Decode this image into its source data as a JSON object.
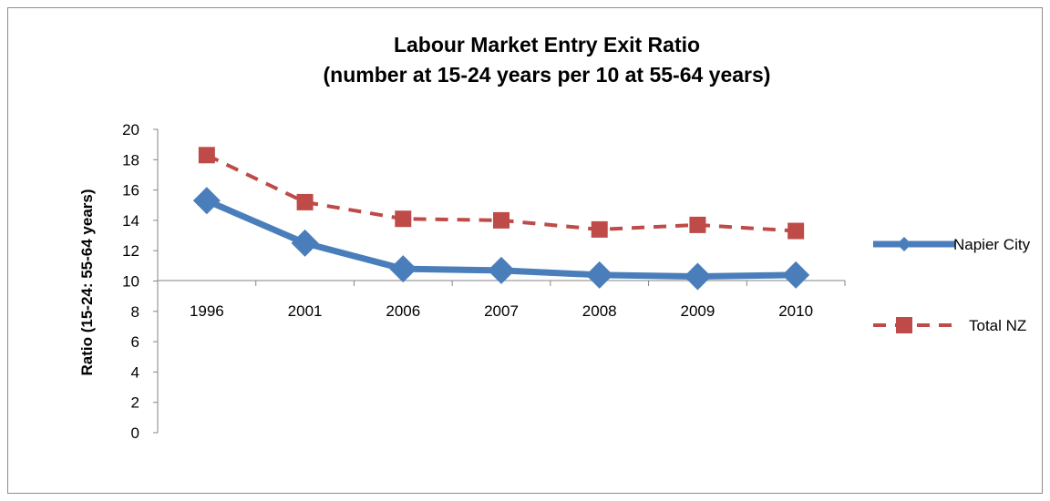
{
  "chart_data": {
    "type": "line",
    "title": "Labour Market Entry Exit Ratio",
    "subtitle": "(number at 15-24 years per 10 at 55-64 years)",
    "ylabel": "Ratio  (15-24: 55-64 years)",
    "xlabel": "",
    "categories": [
      "1996",
      "2001",
      "2006",
      "2007",
      "2008",
      "2009",
      "2010"
    ],
    "ylim": [
      0,
      20
    ],
    "yticks": [
      "0",
      "2",
      "4",
      "6",
      "8",
      "10",
      "12",
      "14",
      "16",
      "18",
      "20"
    ],
    "grid": false,
    "legend_position": "right",
    "series": [
      {
        "name": "Napier City",
        "values": [
          15.3,
          12.5,
          10.8,
          10.7,
          10.4,
          10.3,
          10.4
        ],
        "color": "#4a7ebb",
        "marker": "diamond",
        "style": "solid"
      },
      {
        "name": "Total NZ",
        "values": [
          18.3,
          15.2,
          14.1,
          14.0,
          13.4,
          13.7,
          13.3
        ],
        "color": "#be4b48",
        "marker": "square",
        "style": "dashed"
      }
    ]
  }
}
